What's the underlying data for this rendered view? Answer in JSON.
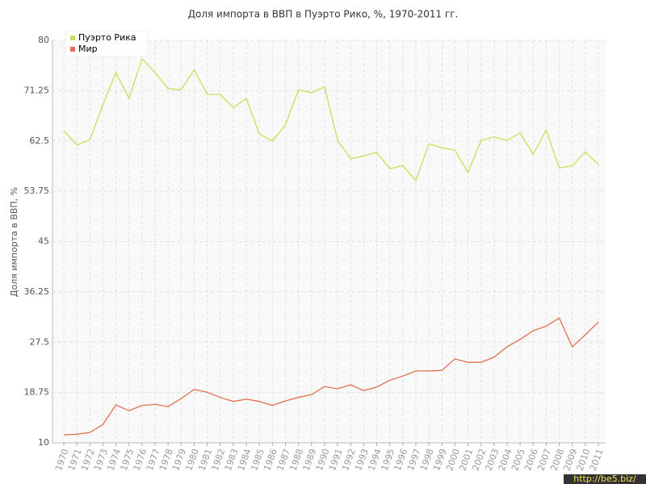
{
  "chart_data": {
    "type": "line",
    "title": "Доля импорта в ВВП в Пуэрто Рико, %, 1970-2011 гг.",
    "y_label": "Доля импорта в ВВП, %",
    "watermark": "http://be5.biz/",
    "categories": [
      "1970",
      "1971",
      "1972",
      "1973",
      "1974",
      "1975",
      "1976",
      "1977",
      "1978",
      "1979",
      "1980",
      "1981",
      "1982",
      "1983",
      "1984",
      "1985",
      "1986",
      "1987",
      "1988",
      "1989",
      "1990",
      "1991",
      "1992",
      "1993",
      "1994",
      "1995",
      "1996",
      "1997",
      "1998",
      "1999",
      "2000",
      "2001",
      "2002",
      "2003",
      "2004",
      "2005",
      "2006",
      "2007",
      "2008",
      "2009",
      "2010",
      "2011"
    ],
    "series": [
      {
        "name": "Пуэрто Рика",
        "color": "#c8de5a",
        "values": [
          64.3,
          61.8,
          62.7,
          68.8,
          74.4,
          69.9,
          76.8,
          74.4,
          71.6,
          71.4,
          74.9,
          70.6,
          70.6,
          68.3,
          69.9,
          63.7,
          62.5,
          65.3,
          71.4,
          70.9,
          71.9,
          62.6,
          59.4,
          59.9,
          60.5,
          57.7,
          58.2,
          55.6,
          62.0,
          61.3,
          60.9,
          57.0,
          62.6,
          63.2,
          62.6,
          63.9,
          60.2,
          64.4,
          57.8,
          58.2,
          60.6,
          58.4
        ]
      },
      {
        "name": "Мир",
        "color": "#e07050",
        "values": [
          11.4,
          11.5,
          11.8,
          13.2,
          16.6,
          15.6,
          16.5,
          16.7,
          16.3,
          17.7,
          19.3,
          18.8,
          17.9,
          17.2,
          17.6,
          17.2,
          16.5,
          17.3,
          17.9,
          18.4,
          19.8,
          19.4,
          20.1,
          19.1,
          19.7,
          20.9,
          21.6,
          22.5,
          22.5,
          22.6,
          24.6,
          24.0,
          24.0,
          24.9,
          26.7,
          28.0,
          29.5,
          30.3,
          31.7,
          26.7,
          28.8,
          31.0
        ]
      }
    ],
    "ylim": [
      10,
      80
    ],
    "yticks": [
      10,
      18.75,
      27.5,
      36.25,
      45,
      53.75,
      62.5,
      71.25,
      80
    ],
    "grid": true,
    "legend": "top-left"
  }
}
